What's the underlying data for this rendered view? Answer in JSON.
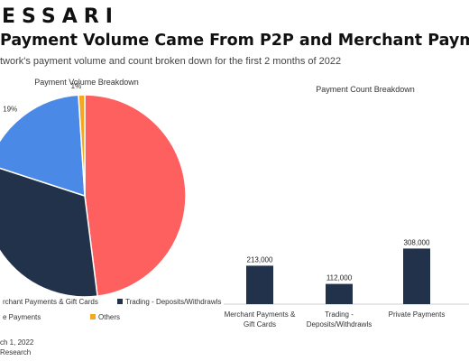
{
  "header": {
    "brand": "ESSARI",
    "headline": "Payment Volume Came From P2P and Merchant Payme",
    "subhead": "twork's payment volume and count broken down for the first 2 months of 2022"
  },
  "colors": {
    "merchant": "#fe5f5f",
    "trading": "#22324a",
    "private": "#4a8ae6",
    "others": "#f5a623",
    "bar": "#22324a"
  },
  "chart_data": [
    {
      "type": "pie",
      "title": "Payment Volume Breakdown",
      "slices": [
        {
          "name": "Merchant Payments & Gift Cards",
          "value": 48,
          "color": "#fe5f5f",
          "label": ""
        },
        {
          "name": "Trading - Deposits/Withdrawls",
          "value": 32,
          "color": "#22324a",
          "label": "32%"
        },
        {
          "name": "Private Payments",
          "value": 19,
          "color": "#4a8ae6",
          "label": "19%"
        },
        {
          "name": "Others",
          "value": 1,
          "color": "#f5a623",
          "label": "1%"
        }
      ],
      "legend": [
        {
          "name": "rchant Payments & Gift Cards",
          "color": "#fe5f5f"
        },
        {
          "name": "Trading - Deposits/Withdrawls",
          "color": "#22324a"
        },
        {
          "name": "e Payments",
          "color": "#4a8ae6"
        },
        {
          "name": "Others",
          "color": "#f5a623"
        }
      ]
    },
    {
      "type": "bar",
      "title": "Payment Count Breakdown",
      "categories": [
        [
          "Merchant Payments &",
          "Gift Cards"
        ],
        [
          "Trading -",
          "Deposits/Withdrawls"
        ],
        [
          "Private Payments"
        ]
      ],
      "values": [
        213000,
        112000,
        308000
      ],
      "value_labels": [
        "213,000",
        "112,000",
        "308,000"
      ],
      "ylim": [
        0,
        320000
      ]
    }
  ],
  "footer": {
    "date": "ch 1, 2022",
    "source": "Research"
  }
}
